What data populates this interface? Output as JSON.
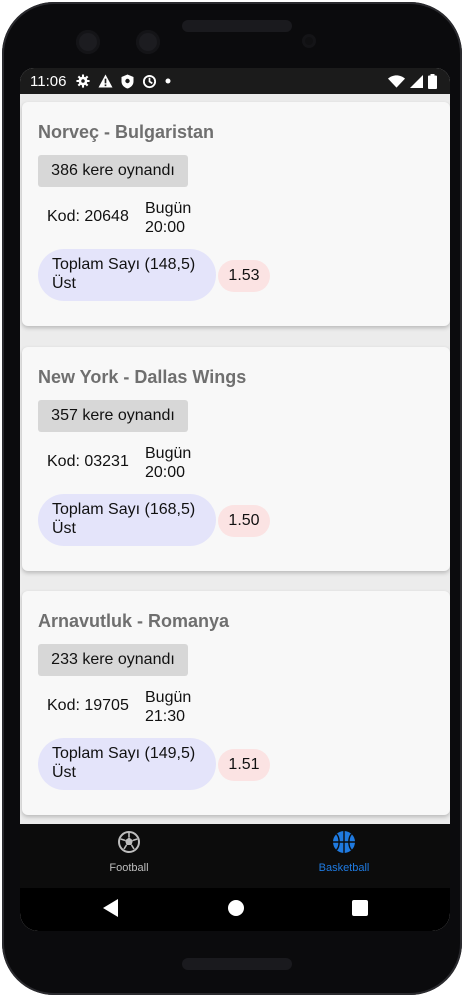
{
  "status_bar": {
    "time": "11:06",
    "left_icons": [
      "gear-icon",
      "warning-icon",
      "shield-icon",
      "data-saver-icon",
      "dot-icon"
    ],
    "right_icons": [
      "wifi-icon",
      "signal-icon",
      "battery-icon"
    ]
  },
  "matches": [
    {
      "title": "Norveç - Bulgaristan",
      "played": "386 kere oynandı",
      "code": "Kod: 20648",
      "day": "Bugün",
      "time": "20:00",
      "bet_line1": "Toplam Sayı (148,5)",
      "bet_line2": "Üst",
      "odd": "1.53"
    },
    {
      "title": "New York - Dallas Wings",
      "played": "357 kere oynandı",
      "code": "Kod: 03231",
      "day": "Bugün",
      "time": "20:00",
      "bet_line1": "Toplam Sayı (168,5)",
      "bet_line2": "Üst",
      "odd": "1.50"
    },
    {
      "title": "Arnavutluk - Romanya",
      "played": "233 kere oynandı",
      "code": "Kod: 19705",
      "day": "Bugün",
      "time": "21:30",
      "bet_line1": "Toplam Sayı (149,5)",
      "bet_line2": "Üst",
      "odd": "1.51"
    }
  ],
  "bottom_nav": {
    "items": [
      {
        "label": "Football",
        "icon": "soccer-ball-icon",
        "active": false
      },
      {
        "label": "Basketball",
        "icon": "basketball-icon",
        "active": true
      }
    ],
    "active_color": "#1f7ae0",
    "inactive_color": "#bdbdbd"
  },
  "system_nav": [
    "back-icon",
    "home-icon",
    "recents-icon"
  ]
}
